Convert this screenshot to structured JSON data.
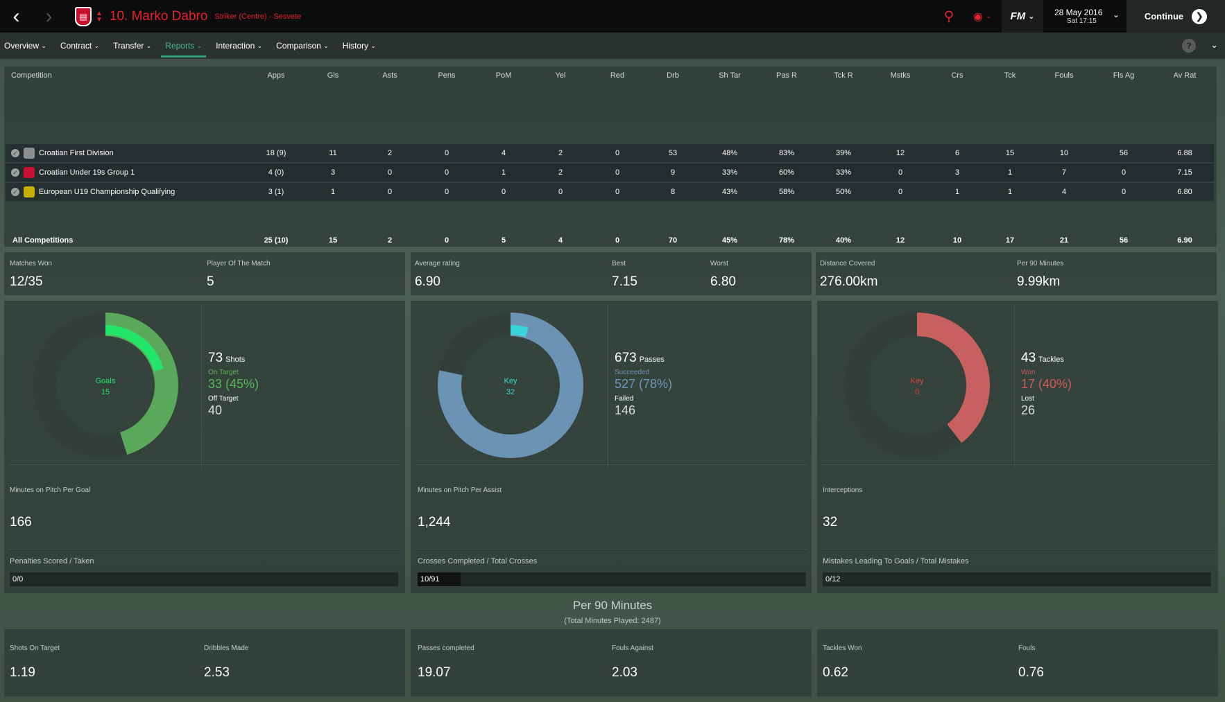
{
  "header": {
    "player_name": "10. Marko Dabro",
    "player_role": "Striker (Centre) - Sesvete",
    "date": "28 May 2016",
    "day_time": "Sat 17:15",
    "continue_label": "Continue",
    "fm_label": "FM"
  },
  "tabs": [
    {
      "label": "Overview"
    },
    {
      "label": "Contract"
    },
    {
      "label": "Transfer"
    },
    {
      "label": "Reports"
    },
    {
      "label": "Interaction"
    },
    {
      "label": "Comparison"
    },
    {
      "label": "History"
    }
  ],
  "help_label": "?",
  "stats_table": {
    "columns": [
      "Competition",
      "Apps",
      "Gls",
      "Asts",
      "Pens",
      "PoM",
      "Yel",
      "Red",
      "Drb",
      "Sh Tar",
      "Pas R",
      "Tck R",
      "Mstks",
      "Crs",
      "Tck",
      "Fouls",
      "Fls Ag",
      "Av Rat"
    ],
    "rows": [
      {
        "competition": "Croatian First Division",
        "apps": "18 (9)",
        "gls": "11",
        "asts": "2",
        "pens": "0",
        "pom": "4",
        "yel": "2",
        "red": "0",
        "drb": "53",
        "shtar": "48%",
        "pasr": "83%",
        "tckr": "39%",
        "mstks": "12",
        "crs": "6",
        "tck": "15",
        "fouls": "10",
        "flsag": "56",
        "avrat": "6.88"
      },
      {
        "competition": "Croatian Under 19s Group 1",
        "apps": "4 (0)",
        "gls": "3",
        "asts": "0",
        "pens": "0",
        "pom": "1",
        "yel": "2",
        "red": "0",
        "drb": "9",
        "shtar": "33%",
        "pasr": "60%",
        "tckr": "33%",
        "mstks": "0",
        "crs": "3",
        "tck": "1",
        "fouls": "7",
        "flsag": "0",
        "avrat": "7.15"
      },
      {
        "competition": "European U19 Championship Qualifying",
        "apps": "3 (1)",
        "gls": "1",
        "asts": "0",
        "pens": "0",
        "pom": "0",
        "yel": "0",
        "red": "0",
        "drb": "8",
        "shtar": "43%",
        "pasr": "58%",
        "tckr": "50%",
        "mstks": "0",
        "crs": "1",
        "tck": "1",
        "fouls": "4",
        "flsag": "0",
        "avrat": "6.80"
      }
    ],
    "total": {
      "competition": "All Competitions",
      "apps": "25 (10)",
      "gls": "15",
      "asts": "2",
      "pens": "0",
      "pom": "5",
      "yel": "4",
      "red": "0",
      "drb": "70",
      "shtar": "45%",
      "pasr": "78%",
      "tckr": "40%",
      "mstks": "12",
      "crs": "10",
      "tck": "17",
      "fouls": "21",
      "flsag": "56",
      "avrat": "6.90"
    }
  },
  "summary": {
    "matches_won_label": "Matches Won",
    "matches_won": "12/35",
    "pom_label": "Player Of The Match",
    "pom": "5",
    "avg_rating_label": "Average rating",
    "avg_rating": "6.90",
    "best_label": "Best",
    "best": "7.15",
    "worst_label": "Worst",
    "worst": "6.80",
    "distance_label": "Distance Covered",
    "distance": "276.00km",
    "per90_label": "Per 90 Minutes",
    "per90": "9.99km"
  },
  "shots": {
    "center_label": "Goals",
    "center_value": "15",
    "total": "73",
    "total_label": "Shots",
    "a_label": "On Target",
    "a_value": "33 (45%)",
    "b_label": "Off Target",
    "b_value": "40",
    "total_num": 73,
    "on_target_num": 33,
    "goals_num": 15,
    "ring_color": "#5aa85a",
    "inner_color": "#22e66a"
  },
  "passes": {
    "center_label": "Key",
    "center_value": "32",
    "total": "673",
    "total_label": "Passes",
    "a_label": "Succeeded",
    "a_value": "527 (78%)",
    "b_label": "Failed",
    "b_value": "146",
    "total_num": 673,
    "succeeded_num": 527,
    "key_num": 32,
    "ring_color": "#6b94b4",
    "inner_color": "#38d6d8"
  },
  "tackles": {
    "center_label": "Key",
    "center_value": "0",
    "total": "43",
    "total_label": "Tackles",
    "a_label": "Won",
    "a_value": "17 (40%)",
    "b_label": "Lost",
    "b_value": "26",
    "total_num": 43,
    "won_num": 17,
    "key_num": 0,
    "ring_color": "#c86060",
    "inner_color": "#e84040"
  },
  "minutes": {
    "per_goal_label": "Minutes on Pitch Per Goal",
    "per_goal": "166",
    "per_assist_label": "Minutes on Pitch Per Assist",
    "per_assist": "1,244",
    "interceptions_label": "Interceptions",
    "interceptions": "32"
  },
  "bars": {
    "penalties_label": "Penalties Scored / Taken",
    "penalties": "0/0",
    "penalties_fraction": 0,
    "crosses_label": "Crosses Completed / Total Crosses",
    "crosses": "10/91",
    "crosses_fraction": 0.11,
    "mistakes_label": "Mistakes Leading To Goals / Total Mistakes",
    "mistakes": "0/12",
    "mistakes_fraction": 0
  },
  "per90": {
    "title": "Per 90 Minutes",
    "subtitle": "(Total Minutes Played: 2487)",
    "shots_on_target_label": "Shots On Target",
    "shots_on_target": "1.19",
    "dribbles_label": "Dribbles Made",
    "dribbles": "2.53",
    "passes_label": "Passes completed",
    "passes": "19.07",
    "fouls_against_label": "Fouls Against",
    "fouls_against": "2.03",
    "tackles_won_label": "Tackles Won",
    "tackles_won": "0.62",
    "fouls_label": "Fouls",
    "fouls": "0.76"
  }
}
